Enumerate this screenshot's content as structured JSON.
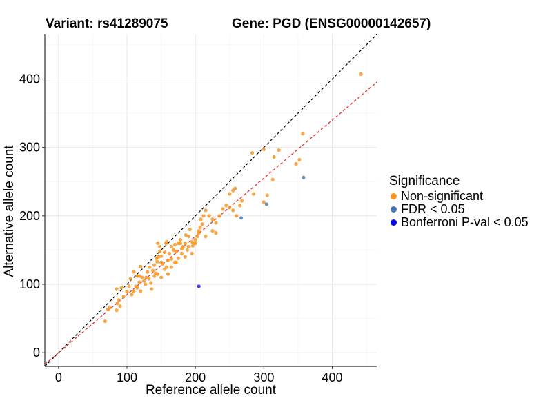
{
  "header": {
    "variant": "Variant: rs41289075",
    "gene": "Gene: PGD (ENSG00000142657)"
  },
  "legend": {
    "title": "Significance",
    "items": [
      {
        "label": "Non-significant",
        "color": "#f7941d"
      },
      {
        "label": "FDR < 0.05",
        "color": "#4a79b0"
      },
      {
        "label": "Bonferroni P-val < 0.05",
        "color": "#0a0ae6"
      }
    ]
  },
  "chart_data": {
    "type": "scatter",
    "xlabel": "Reference allele count",
    "ylabel": "Alternative allele count",
    "xlim": [
      -20,
      465
    ],
    "ylim": [
      -20,
      465
    ],
    "xticks": [
      0,
      100,
      200,
      300,
      400
    ],
    "yticks": [
      0,
      100,
      200,
      300,
      400
    ],
    "grid": true,
    "legend_position": "right",
    "reference_lines": [
      {
        "name": "y = x",
        "slope": 1.0,
        "intercept": 0,
        "color": "#000000",
        "style": "dashed"
      },
      {
        "name": "fit",
        "slope": 0.85,
        "intercept": 0,
        "color": "#e8231f",
        "style": "dashed"
      }
    ],
    "series": [
      {
        "name": "Non-significant",
        "color": "#f7941d",
        "points": [
          [
            68,
            46
          ],
          [
            72,
            63
          ],
          [
            75,
            66
          ],
          [
            85,
            62
          ],
          [
            86,
            72
          ],
          [
            88,
            77
          ],
          [
            90,
            68
          ],
          [
            95,
            82
          ],
          [
            85,
            93
          ],
          [
            92,
            95
          ],
          [
            100,
            89
          ],
          [
            103,
            97
          ],
          [
            107,
            85
          ],
          [
            110,
            90
          ],
          [
            113,
            97
          ],
          [
            115,
            95
          ],
          [
            118,
            103
          ],
          [
            105,
            108
          ],
          [
            110,
            118
          ],
          [
            115,
            112
          ],
          [
            120,
            126
          ],
          [
            122,
            110
          ],
          [
            125,
            105
          ],
          [
            127,
            100
          ],
          [
            130,
            118
          ],
          [
            132,
            108
          ],
          [
            135,
            102
          ],
          [
            136,
            93
          ],
          [
            138,
            120
          ],
          [
            140,
            112
          ],
          [
            142,
            116
          ],
          [
            144,
            133
          ],
          [
            146,
            140
          ],
          [
            148,
            155
          ],
          [
            150,
            141
          ],
          [
            152,
            130
          ],
          [
            155,
            147
          ],
          [
            157,
            160
          ],
          [
            158,
            125
          ],
          [
            160,
            135
          ],
          [
            162,
            145
          ],
          [
            165,
            137
          ],
          [
            168,
            150
          ],
          [
            170,
            158
          ],
          [
            172,
            132
          ],
          [
            175,
            160
          ],
          [
            178,
            165
          ],
          [
            180,
            152
          ],
          [
            182,
            155
          ],
          [
            185,
            160
          ],
          [
            186,
            172
          ],
          [
            188,
            150
          ],
          [
            190,
            170
          ],
          [
            192,
            180
          ],
          [
            195,
            162
          ],
          [
            148,
            148
          ],
          [
            140,
            128
          ],
          [
            128,
            110
          ],
          [
            118,
            112
          ],
          [
            145,
            115
          ],
          [
            150,
            110
          ],
          [
            155,
            122
          ],
          [
            160,
            115
          ],
          [
            165,
            125
          ],
          [
            170,
            132
          ],
          [
            175,
            138
          ],
          [
            185,
            140
          ],
          [
            145,
            160
          ],
          [
            158,
            162
          ],
          [
            165,
            155
          ],
          [
            172,
            148
          ],
          [
            180,
            145
          ],
          [
            196,
            156
          ],
          [
            198,
            160
          ],
          [
            200,
            165
          ],
          [
            203,
            170
          ],
          [
            205,
            175
          ],
          [
            207,
            183
          ],
          [
            210,
            188
          ],
          [
            212,
            200
          ],
          [
            208,
            195
          ],
          [
            205,
            178
          ],
          [
            215,
            208
          ],
          [
            220,
            200
          ],
          [
            225,
            195
          ],
          [
            230,
            190
          ],
          [
            235,
            200
          ],
          [
            240,
            210
          ],
          [
            245,
            215
          ],
          [
            250,
            212
          ],
          [
            255,
            208
          ],
          [
            260,
            200
          ],
          [
            265,
            215
          ],
          [
            268,
            222
          ],
          [
            250,
            232
          ],
          [
            255,
            237
          ],
          [
            258,
            240
          ],
          [
            215,
            170
          ],
          [
            200,
            160
          ],
          [
            190,
            155
          ],
          [
            178,
            160
          ],
          [
            225,
            178
          ],
          [
            230,
            175
          ],
          [
            285,
            232
          ],
          [
            300,
            220
          ],
          [
            305,
            230
          ],
          [
            313,
            253
          ],
          [
            315,
            286
          ],
          [
            322,
            296
          ],
          [
            300,
            297
          ],
          [
            283,
            292
          ],
          [
            347,
            276
          ],
          [
            352,
            282
          ],
          [
            357,
            320
          ],
          [
            442,
            407
          ],
          [
            120,
            90
          ],
          [
            195,
            145
          ],
          [
            150,
            132
          ],
          [
            143,
            138
          ],
          [
            133,
            125
          ]
        ]
      },
      {
        "name": "FDR < 0.05",
        "color": "#4a79b0",
        "points": [
          [
            267,
            197
          ],
          [
            304,
            217
          ],
          [
            358,
            256
          ]
        ]
      },
      {
        "name": "Bonferroni P-val < 0.05",
        "color": "#0a0ae6",
        "points": [
          [
            205,
            97
          ]
        ]
      }
    ]
  }
}
